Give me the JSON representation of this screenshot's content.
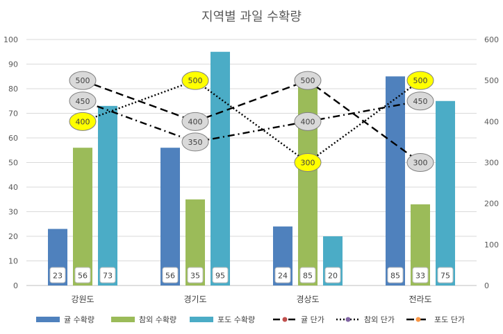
{
  "chart_data": {
    "type": "bar",
    "title": "지역별 과일 수확량",
    "categories": [
      "강원도",
      "경기도",
      "경상도",
      "전라도"
    ],
    "series": [
      {
        "name": "귤 수확량",
        "type": "bar",
        "axis": "left",
        "color": "#4f81bd",
        "values": [
          23,
          56,
          24,
          85
        ]
      },
      {
        "name": "참외 수확량",
        "type": "bar",
        "axis": "left",
        "color": "#9bbb59",
        "values": [
          56,
          35,
          85,
          33
        ]
      },
      {
        "name": "포도 수확량",
        "type": "bar",
        "axis": "left",
        "color": "#4bacc6",
        "values": [
          73,
          95,
          20,
          75
        ]
      },
      {
        "name": "귤 단가",
        "type": "line",
        "axis": "right",
        "style": "dashdot",
        "marker_color": "#c0504d",
        "label_fill": "#d9d9d9",
        "values": [
          450,
          350,
          400,
          450
        ]
      },
      {
        "name": "참외 단가",
        "type": "line",
        "axis": "right",
        "style": "dotted",
        "marker_color": "#8064a2",
        "label_fill": "#ffff00",
        "values": [
          400,
          500,
          300,
          500
        ]
      },
      {
        "name": "포도 단가",
        "type": "line",
        "axis": "right",
        "style": "dashed",
        "marker_color": "#f79646",
        "label_fill": "#d9d9d9",
        "values": [
          500,
          400,
          500,
          300
        ]
      }
    ],
    "y_left": {
      "min": 0,
      "max": 100,
      "ticks": [
        "0",
        "10",
        "20",
        "30",
        "40",
        "50",
        "60",
        "70",
        "80",
        "90",
        "100"
      ]
    },
    "y_right": {
      "min": 0,
      "max": 600,
      "ticks": [
        "0",
        "100",
        "200",
        "300",
        "400",
        "500",
        "600"
      ]
    },
    "grid": true,
    "legend_position": "bottom"
  }
}
